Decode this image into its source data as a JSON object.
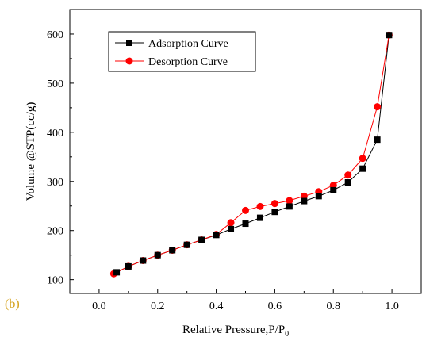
{
  "panel_label": "(b)",
  "colors": {
    "adsorption": "#000000",
    "desorption": "#ff0000",
    "panel_label": "#d4a017"
  },
  "chart_data": {
    "type": "line",
    "xlabel_main": "Relative Pressure,P/P",
    "xlabel_sub": "0",
    "ylabel": "Volume @STP(cc/g)",
    "xlim": [
      -0.1,
      1.1
    ],
    "ylim": [
      72,
      650
    ],
    "xticks": [
      0.0,
      0.2,
      0.4,
      0.6,
      0.8,
      1.0
    ],
    "xtick_labels": [
      "0.0",
      "0.2",
      "0.4",
      "0.6",
      "0.8",
      "1.0"
    ],
    "yticks": [
      100,
      200,
      300,
      400,
      500,
      600
    ],
    "ytick_labels": [
      "100",
      "200",
      "300",
      "400",
      "500",
      "600"
    ],
    "legend_position": "top-left",
    "series": [
      {
        "name": "Adsorption Curve",
        "marker": "square",
        "color": "#000000",
        "x": [
          0.06,
          0.1,
          0.15,
          0.2,
          0.25,
          0.3,
          0.35,
          0.4,
          0.45,
          0.5,
          0.55,
          0.6,
          0.65,
          0.7,
          0.75,
          0.8,
          0.85,
          0.9,
          0.95,
          0.99
        ],
        "y": [
          115,
          127,
          139,
          150,
          160,
          171,
          181,
          191,
          203,
          214,
          226,
          238,
          249,
          260,
          270,
          282,
          298,
          326,
          385,
          598
        ]
      },
      {
        "name": "Desorption Curve",
        "marker": "circle",
        "color": "#ff0000",
        "x": [
          0.05,
          0.1,
          0.15,
          0.2,
          0.25,
          0.3,
          0.35,
          0.4,
          0.45,
          0.5,
          0.55,
          0.6,
          0.65,
          0.7,
          0.75,
          0.8,
          0.85,
          0.9,
          0.95,
          0.99
        ],
        "y": [
          112,
          127,
          139,
          150,
          160,
          171,
          181,
          192,
          216,
          241,
          249,
          255,
          261,
          270,
          279,
          292,
          313,
          347,
          452,
          598
        ]
      }
    ]
  }
}
